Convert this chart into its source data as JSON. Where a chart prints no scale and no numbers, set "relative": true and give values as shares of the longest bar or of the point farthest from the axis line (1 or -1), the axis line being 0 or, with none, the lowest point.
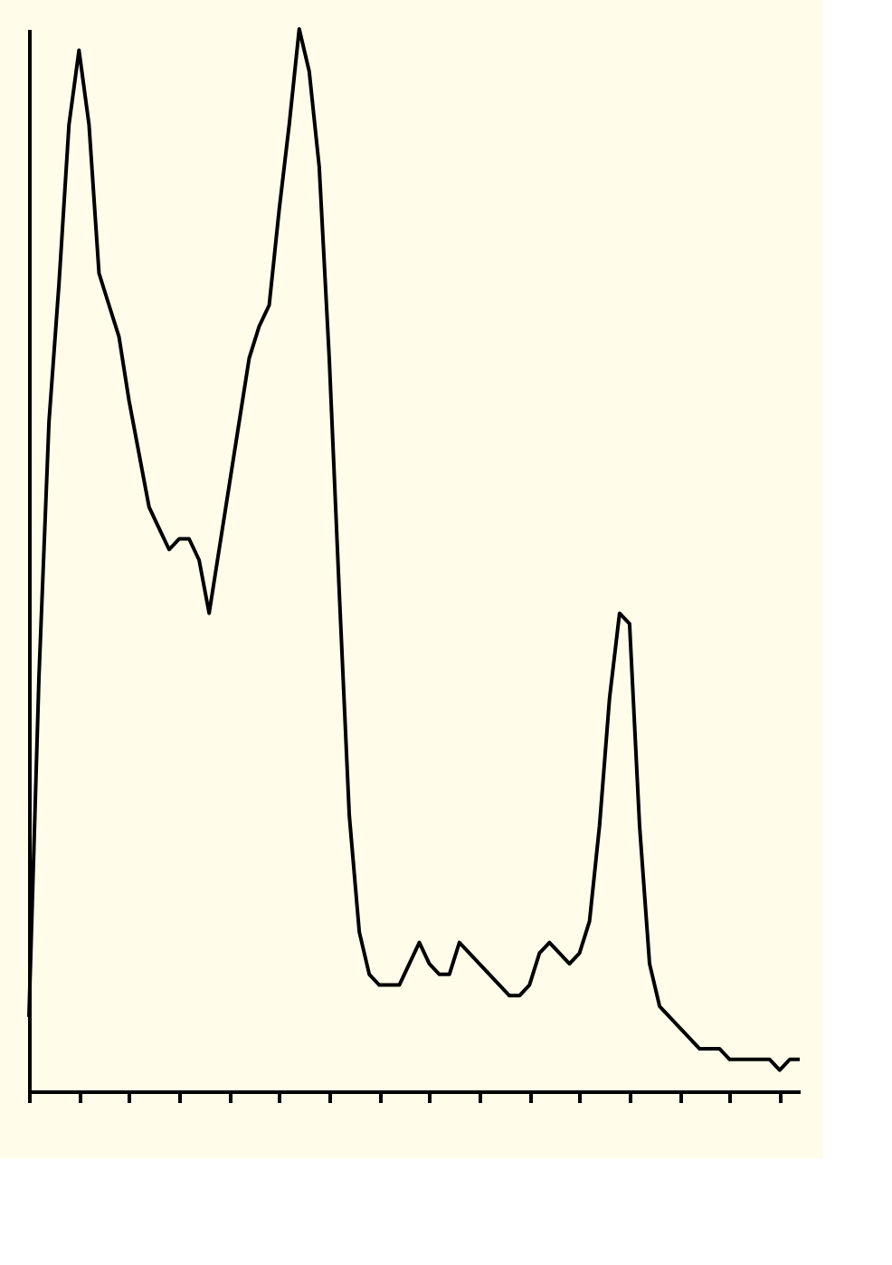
{
  "chart_data": {
    "type": "line",
    "relative": true,
    "tick_labels": false,
    "grid": false,
    "legend": false,
    "marker": "none",
    "line_style": "solid",
    "categories": [
      null,
      null,
      null,
      null,
      null,
      null,
      null,
      null,
      null,
      null,
      null,
      null,
      null,
      null,
      null,
      null,
      null,
      null,
      null,
      null,
      null,
      null,
      null,
      null,
      null,
      null,
      null,
      null,
      null,
      null,
      null,
      null,
      null,
      null,
      null,
      null,
      null,
      null,
      null,
      null,
      null,
      null,
      null,
      null,
      null,
      null,
      null,
      null,
      null,
      null,
      null,
      null,
      null,
      null,
      null,
      null,
      null,
      null,
      null,
      null,
      null,
      null,
      null,
      null,
      null,
      null,
      null,
      null,
      null,
      null,
      null,
      null,
      null,
      null,
      null,
      null,
      null,
      null
    ],
    "series": [
      {
        "color": "#000000",
        "values": [
          0.07,
          0.39,
          0.63,
          0.76,
          0.91,
          0.98,
          0.91,
          0.77,
          0.74,
          0.71,
          0.65,
          0.6,
          0.55,
          0.53,
          0.51,
          0.52,
          0.52,
          0.5,
          0.45,
          0.51,
          0.57,
          0.63,
          0.69,
          0.72,
          0.74,
          0.83,
          0.91,
          1.0,
          0.96,
          0.87,
          0.69,
          0.47,
          0.26,
          0.15,
          0.11,
          0.1,
          0.1,
          0.1,
          0.12,
          0.14,
          0.12,
          0.11,
          0.11,
          0.14,
          0.13,
          0.12,
          0.11,
          0.1,
          0.09,
          0.09,
          0.1,
          0.13,
          0.14,
          0.13,
          0.12,
          0.13,
          0.16,
          0.25,
          0.37,
          0.45,
          0.44,
          0.25,
          0.12,
          0.08,
          0.07,
          0.06,
          0.05,
          0.04,
          0.04,
          0.04,
          0.03,
          0.03,
          0.03,
          0.03,
          0.03,
          0.02,
          0.03,
          0.03
        ]
      }
    ]
  }
}
